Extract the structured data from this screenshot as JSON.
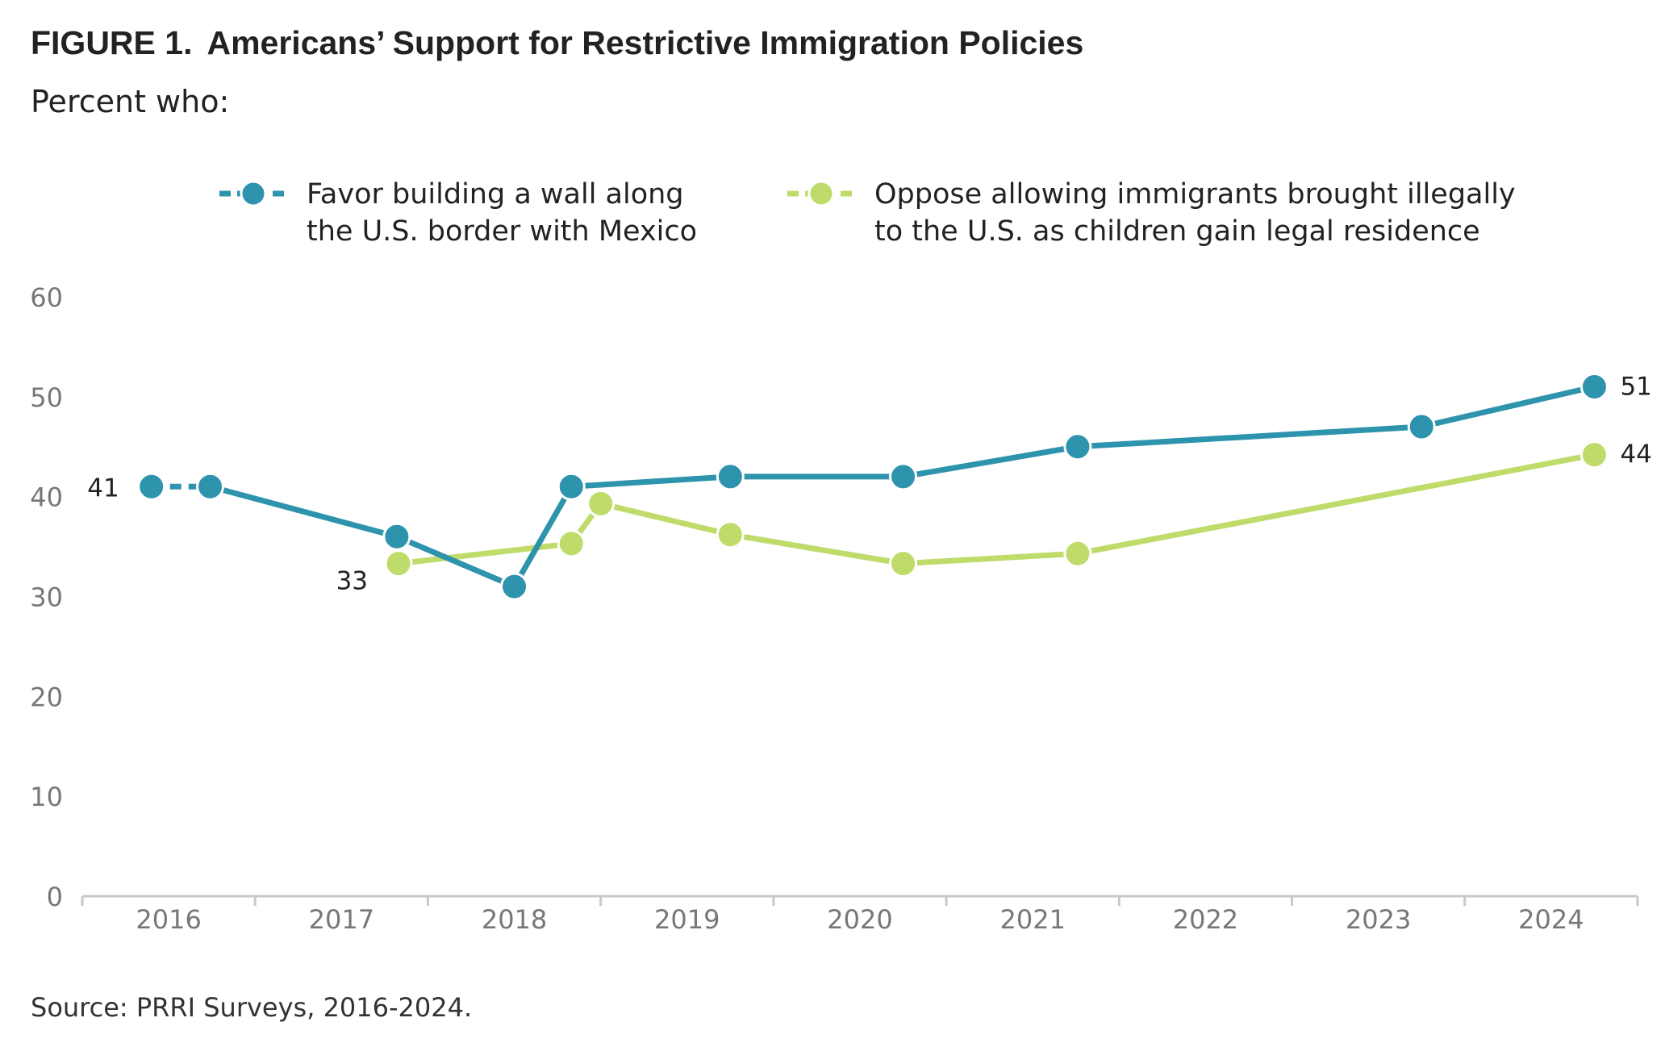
{
  "figure": {
    "label": "FIGURE 1.",
    "title": "Americans’ Support for Restrictive Immigration Policies",
    "subtitle": "Percent who:",
    "source": "Source: PRRI Surveys, 2016-2024."
  },
  "colors": {
    "wall": "#2e93ad",
    "daca": "#bfdc6a",
    "axis": "#c8c8c8",
    "tick_text": "#777777",
    "label_text": "#222222"
  },
  "chart_data": {
    "type": "line",
    "title": "Americans’ Support for Restrictive Immigration Policies",
    "ylim": [
      0,
      60
    ],
    "yticks": [
      0,
      10,
      20,
      30,
      40,
      50,
      60
    ],
    "xlim": [
      2016,
      2025
    ],
    "xtick_labels": [
      "2016",
      "2017",
      "2018",
      "2019",
      "2020",
      "2021",
      "2022",
      "2023",
      "2024"
    ],
    "grid": false,
    "legend_position": "top",
    "series": [
      {
        "name": "Favor building a wall along the U.S. border with Mexico",
        "legend_lines": [
          "Favor building a wall along",
          "the U.S. border with Mexico"
        ],
        "color": "#2e93ad",
        "dashed_segments": [
          0
        ],
        "points": [
          {
            "x": 2016.4,
            "y": 41,
            "label": "41"
          },
          {
            "x": 2016.74,
            "y": 41
          },
          {
            "x": 2017.82,
            "y": 36
          },
          {
            "x": 2018.5,
            "y": 31
          },
          {
            "x": 2018.83,
            "y": 41
          },
          {
            "x": 2019.75,
            "y": 42
          },
          {
            "x": 2020.75,
            "y": 42
          },
          {
            "x": 2021.76,
            "y": 45
          },
          {
            "x": 2023.75,
            "y": 47
          },
          {
            "x": 2024.75,
            "y": 51,
            "label": "51"
          }
        ]
      },
      {
        "name": "Oppose allowing immigrants brought illegally to the U.S. as children gain legal residence",
        "legend_lines": [
          "Oppose allowing immigrants brought illegally",
          "to the U.S. as children gain legal residence"
        ],
        "color": "#bfdc6a",
        "dashed_segments": [],
        "points": [
          {
            "x": 2017.83,
            "y": 33.3,
            "label": "33"
          },
          {
            "x": 2018.83,
            "y": 35.3
          },
          {
            "x": 2019.0,
            "y": 39.3
          },
          {
            "x": 2019.75,
            "y": 36.2
          },
          {
            "x": 2020.75,
            "y": 33.3
          },
          {
            "x": 2021.76,
            "y": 34.3
          },
          {
            "x": 2024.75,
            "y": 44.2,
            "label": "44"
          }
        ]
      }
    ]
  }
}
